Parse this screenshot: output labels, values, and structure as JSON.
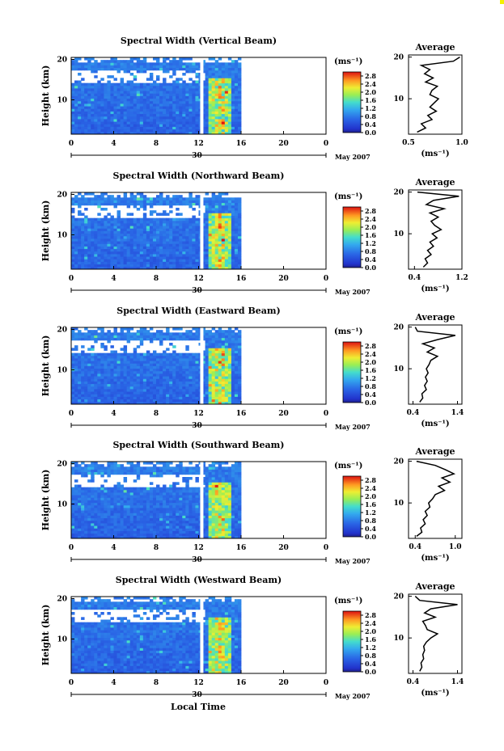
{
  "figure": {
    "xlabel": "Local Time",
    "month_label": "May 2007",
    "day_label": "30",
    "x_ticks": [
      "0",
      "4",
      "8",
      "12",
      "16",
      "20",
      "0"
    ],
    "colorbar_unit": "(ms⁻¹)",
    "colorbar_ticks": [
      "2.8",
      "2.4",
      "2.0",
      "1.6",
      "1.2",
      "0.8",
      "0.4",
      "0.0"
    ],
    "avg_title": "Average",
    "avg_xlabel": "(ms⁻¹)",
    "colors": {
      "low": "#2233cc",
      "mid": "#33aaee",
      "high": "#dd1111",
      "gap": "#ffffff"
    }
  },
  "chart_data": [
    {
      "type": "heatmap",
      "title": "Spectral Width (Vertical Beam)",
      "ylabel": "Height (km)",
      "xlim": [
        0,
        24
      ],
      "ylim": [
        1.5,
        20.5
      ],
      "y_ticks": [
        "20",
        "10"
      ],
      "data_end_hour": 16,
      "gap_hour": 12.3,
      "colorbar_range": [
        0.0,
        3.0
      ],
      "average_profile": {
        "xlim": [
          0.5,
          1.0
        ],
        "x_ticks": [
          "0.5",
          "1.0"
        ],
        "y_ticks": [
          "20",
          "10"
        ],
        "heights": [
          2,
          3,
          4,
          5,
          6,
          7,
          8,
          9,
          10,
          11,
          12,
          13,
          14,
          15,
          16,
          17,
          18,
          19,
          20
        ],
        "values": [
          0.58,
          0.66,
          0.62,
          0.72,
          0.68,
          0.76,
          0.7,
          0.74,
          0.78,
          0.7,
          0.72,
          0.77,
          0.66,
          0.73,
          0.65,
          0.7,
          0.62,
          0.92,
          0.98
        ]
      }
    },
    {
      "type": "heatmap",
      "title": "Spectral Width (Northward Beam)",
      "ylabel": "Height (km)",
      "xlim": [
        0,
        24
      ],
      "ylim": [
        1.5,
        20.5
      ],
      "y_ticks": [
        "20",
        "10"
      ],
      "data_end_hour": 16,
      "gap_hour": 12.3,
      "colorbar_range": [
        0.0,
        3.0
      ],
      "average_profile": {
        "xlim": [
          0.3,
          1.2
        ],
        "x_ticks": [
          "0.4",
          "1.2"
        ],
        "y_ticks": [
          "20",
          "10"
        ],
        "heights": [
          2,
          3,
          4,
          5,
          6,
          7,
          8,
          9,
          10,
          11,
          12,
          13,
          14,
          15,
          16,
          17,
          18,
          19,
          20
        ],
        "values": [
          0.55,
          0.62,
          0.58,
          0.68,
          0.62,
          0.72,
          0.66,
          0.78,
          0.7,
          0.85,
          0.74,
          0.68,
          0.8,
          0.66,
          0.9,
          0.6,
          0.72,
          1.15,
          0.45
        ]
      }
    },
    {
      "type": "heatmap",
      "title": "Spectral Width (Eastward Beam)",
      "ylabel": "Height (km)",
      "xlim": [
        0,
        24
      ],
      "ylim": [
        1.5,
        20.5
      ],
      "y_ticks": [
        "20",
        "10"
      ],
      "data_end_hour": 16,
      "gap_hour": 12.3,
      "colorbar_range": [
        0.0,
        3.0
      ],
      "average_profile": {
        "xlim": [
          0.3,
          1.5
        ],
        "x_ticks": [
          "0.4",
          "1.4"
        ],
        "y_ticks": [
          "20",
          "10"
        ],
        "heights": [
          2,
          3,
          4,
          5,
          6,
          7,
          8,
          9,
          10,
          11,
          12,
          13,
          14,
          15,
          16,
          17,
          18,
          19,
          20
        ],
        "values": [
          0.55,
          0.62,
          0.6,
          0.7,
          0.66,
          0.72,
          0.68,
          0.74,
          0.7,
          0.76,
          0.8,
          0.95,
          0.72,
          0.88,
          0.62,
          0.95,
          1.35,
          0.5,
          0.45
        ]
      }
    },
    {
      "type": "heatmap",
      "title": "Spectral Width (Southward Beam)",
      "ylabel": "Height (km)",
      "xlim": [
        0,
        24
      ],
      "ylim": [
        1.5,
        20.5
      ],
      "y_ticks": [
        "20",
        "10"
      ],
      "data_end_hour": 16,
      "gap_hour": 12.3,
      "colorbar_range": [
        0.0,
        3.0
      ],
      "average_profile": {
        "xlim": [
          0.3,
          1.1
        ],
        "x_ticks": [
          "0.4",
          "1.0"
        ],
        "y_ticks": [
          "20",
          "10"
        ],
        "heights": [
          2,
          3,
          4,
          5,
          6,
          7,
          8,
          9,
          10,
          11,
          12,
          13,
          14,
          15,
          16,
          17,
          18,
          19,
          20
        ],
        "values": [
          0.42,
          0.5,
          0.48,
          0.55,
          0.52,
          0.58,
          0.55,
          0.62,
          0.6,
          0.66,
          0.7,
          0.84,
          0.75,
          0.92,
          0.8,
          0.98,
          0.85,
          0.7,
          0.42
        ]
      }
    },
    {
      "type": "heatmap",
      "title": "Spectral Width (Westward Beam)",
      "ylabel": "Height (km)",
      "xlim": [
        0,
        24
      ],
      "ylim": [
        1.5,
        20.5
      ],
      "y_ticks": [
        "20",
        "10"
      ],
      "data_end_hour": 16,
      "gap_hour": 12.3,
      "colorbar_range": [
        0.0,
        3.0
      ],
      "average_profile": {
        "xlim": [
          0.3,
          1.5
        ],
        "x_ticks": [
          "0.4",
          "1.4"
        ],
        "y_ticks": [
          "20",
          "10"
        ],
        "heights": [
          2,
          3,
          4,
          5,
          6,
          7,
          8,
          9,
          10,
          11,
          12,
          13,
          14,
          15,
          16,
          17,
          18,
          19,
          20
        ],
        "values": [
          0.55,
          0.6,
          0.58,
          0.64,
          0.62,
          0.66,
          0.64,
          0.7,
          0.8,
          0.95,
          0.72,
          0.68,
          0.62,
          0.9,
          0.66,
          0.8,
          1.4,
          0.55,
          0.45
        ]
      }
    }
  ]
}
